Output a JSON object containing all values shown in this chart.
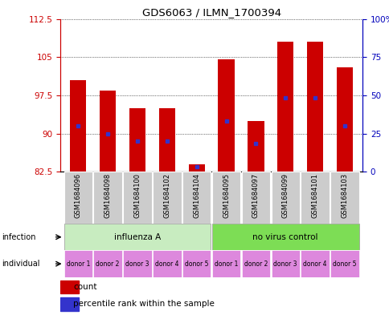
{
  "title": "GDS6063 / ILMN_1700394",
  "samples": [
    "GSM1684096",
    "GSM1684098",
    "GSM1684100",
    "GSM1684102",
    "GSM1684104",
    "GSM1684095",
    "GSM1684097",
    "GSM1684099",
    "GSM1684101",
    "GSM1684103"
  ],
  "bar_heights": [
    100.5,
    98.5,
    95.0,
    95.0,
    84.0,
    104.5,
    92.5,
    108.0,
    108.0,
    103.0
  ],
  "blue_positions": [
    91.5,
    90.0,
    88.5,
    88.5,
    83.5,
    92.5,
    88.0,
    97.0,
    97.0,
    91.5
  ],
  "y_min": 82.5,
  "y_max": 112.5,
  "y_ticks_left": [
    82.5,
    90.0,
    97.5,
    105.0,
    112.5
  ],
  "y_ticks_right_vals": [
    0,
    25,
    50,
    75,
    100
  ],
  "bar_color": "#cc0000",
  "blue_color": "#3333cc",
  "bar_width": 0.55,
  "inf_indices": [
    0,
    1,
    2,
    3,
    4
  ],
  "nov_indices": [
    5,
    6,
    7,
    8,
    9
  ],
  "infection_color_influenza": "#c8ecc0",
  "infection_color_novirus": "#7ddd55",
  "individual_labels": [
    "donor 1",
    "donor 2",
    "donor 3",
    "donor 4",
    "donor 5",
    "donor 1",
    "donor 2",
    "donor 3",
    "donor 4",
    "donor 5"
  ],
  "individual_color": "#dd88dd",
  "axis_left_color": "#cc0000",
  "axis_right_color": "#0000bb"
}
